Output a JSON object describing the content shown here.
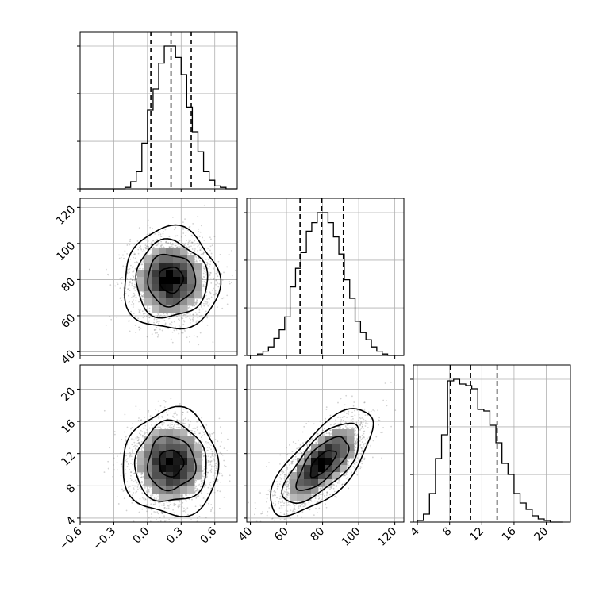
{
  "chart_data": {
    "type": "corner",
    "parameters": [
      {
        "range": [
          -0.6,
          0.8
        ],
        "ticks": [
          -0.6,
          -0.3,
          0.0,
          0.3,
          0.6
        ],
        "tick_labels": [
          "−0.6",
          "−0.3",
          "0.0",
          "0.3",
          "0.6"
        ],
        "quantiles": [
          0.03,
          0.21,
          0.39
        ]
      },
      {
        "range": [
          38,
          125
        ],
        "ticks": [
          40,
          60,
          80,
          100,
          120
        ],
        "tick_labels": [
          "40",
          "60",
          "80",
          "100",
          "120"
        ],
        "quantiles": [
          67.5,
          79.5,
          91.5
        ]
      },
      {
        "range": [
          3.5,
          23
        ],
        "ticks": [
          4,
          8,
          12,
          16,
          20
        ],
        "tick_labels": [
          "4",
          "8",
          "12",
          "16",
          "20"
        ],
        "quantiles": [
          8.1,
          10.6,
          13.9
        ]
      }
    ],
    "histograms": [
      {
        "param": 0,
        "bin_edges": [
          -0.6,
          -0.55,
          -0.5,
          -0.45,
          -0.4,
          -0.35,
          -0.3,
          -0.25,
          -0.2,
          -0.15,
          -0.1,
          -0.05,
          0.0,
          0.05,
          0.1,
          0.15,
          0.2,
          0.25,
          0.3,
          0.35,
          0.4,
          0.45,
          0.5,
          0.55,
          0.6,
          0.65,
          0.7,
          0.75,
          0.8
        ],
        "counts": [
          0,
          0,
          0,
          0,
          0,
          0,
          0,
          0,
          1,
          5,
          12,
          32,
          55,
          70,
          88,
          100,
          100,
          92,
          80,
          57,
          40,
          26,
          12,
          6,
          2,
          1,
          0,
          0
        ]
      },
      {
        "param": 1,
        "bin_edges": [
          38,
          41,
          44,
          47,
          50,
          53,
          56,
          59,
          62,
          65,
          68,
          71,
          74,
          77,
          80,
          83,
          86,
          89,
          92,
          95,
          98,
          101,
          104,
          107,
          110,
          113,
          116,
          119,
          122,
          125
        ],
        "counts": [
          0,
          0,
          1,
          3,
          6,
          12,
          18,
          27,
          48,
          61,
          72,
          87,
          93,
          100,
          100,
          93,
          83,
          71,
          53,
          40,
          24,
          16,
          11,
          6,
          3,
          1,
          0,
          0,
          0
        ]
      },
      {
        "param": 2,
        "bin_edges": [
          4,
          4.75,
          5.5,
          6.25,
          7,
          7.75,
          8.5,
          9.25,
          10,
          10.75,
          11.5,
          12.25,
          13,
          13.75,
          14.5,
          15.25,
          16,
          16.75,
          17.5,
          18.25,
          19,
          19.75,
          20.5,
          21.25,
          22
        ],
        "counts": [
          1,
          5,
          18,
          40,
          55,
          89,
          90,
          87,
          86,
          84,
          71,
          70,
          61,
          50,
          37,
          30,
          18,
          12,
          8,
          4,
          2,
          1,
          0,
          0
        ]
      }
    ],
    "scatter_panels": [
      {
        "x_param": 0,
        "y_param": 1,
        "x_mean": 0.21,
        "y_mean": 80,
        "x_sd": 0.18,
        "y_sd": 12,
        "corr": 0.0
      },
      {
        "x_param": 0,
        "y_param": 2,
        "x_mean": 0.21,
        "y_mean": 10.8,
        "x_sd": 0.18,
        "y_sd": 2.8,
        "corr": 0.0
      },
      {
        "x_param": 1,
        "y_param": 2,
        "x_mean": 80,
        "y_mean": 10.8,
        "x_sd": 12,
        "y_sd": 2.8,
        "corr": 0.7
      }
    ],
    "contour_levels_sigma": [
      0.5,
      1.0,
      1.5,
      2.0
    ],
    "grid": true,
    "colors": {
      "line": "#000000",
      "points": "#7f7f7f",
      "grid": "#b0b0b0",
      "density_dark": "#000000",
      "density_light": "#ffffff"
    }
  }
}
